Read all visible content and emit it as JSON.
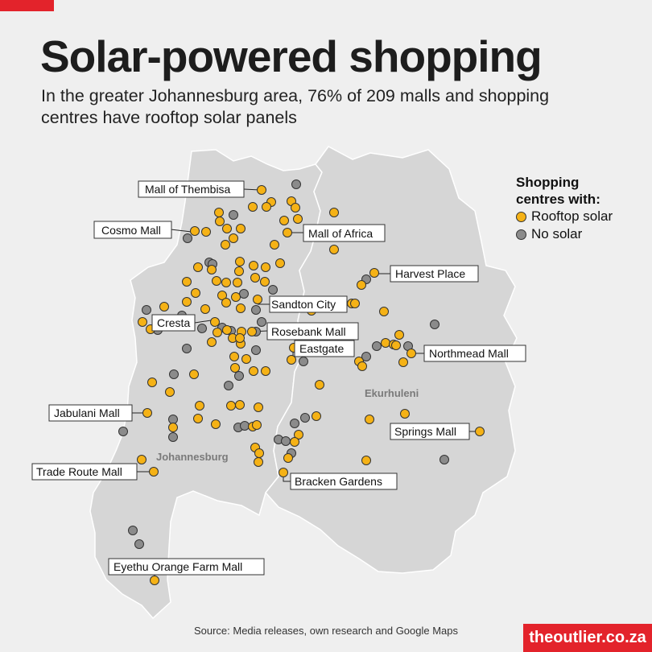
{
  "title": "Solar-powered shopping",
  "subtitle": "In the greater Johannesburg area, 76% of 209 malls and shopping centres have rooftop solar panels",
  "legend": {
    "title": "Shopping centres with:",
    "items": [
      {
        "label": "Rooftop solar",
        "color": "#f5b216"
      },
      {
        "label": "No solar",
        "color": "#8b8b8b"
      }
    ]
  },
  "regions": {
    "johannesburg": "Johannesburg",
    "ekurhuleni": "Ekurhuleni"
  },
  "labels": {
    "thembisa": "Mall of Thembisa",
    "cosmo": "Cosmo Mall",
    "africa": "Mall of Africa",
    "harvest": "Harvest Place",
    "sandton": "Sandton City",
    "cresta": "Cresta",
    "rosebank": "Rosebank Mall",
    "eastgate": "Eastgate",
    "northmead": "Northmead Mall",
    "jabulani": "Jabulani Mall",
    "springs": "Springs Mall",
    "traderoute": "Trade Route Mall",
    "bracken": "Bracken Gardens",
    "eyethu": "Eyethu Orange Farm Mall"
  },
  "source": "Source: Media releases, own research and Google Maps",
  "brand": "theoutlier.co.za"
}
